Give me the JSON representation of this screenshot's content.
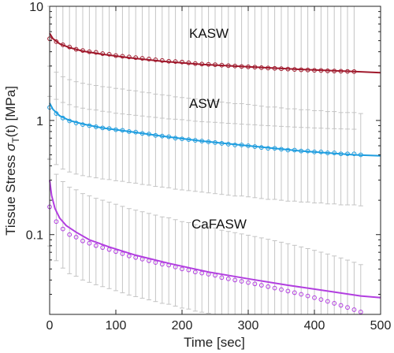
{
  "chart_data": {
    "type": "scatter",
    "xlabel": "Time [sec]",
    "ylabel_prefix": "Tissue Stress ",
    "ylabel_sigma": "σ",
    "ylabel_sub": "T",
    "ylabel_suffix": "(t) [MPa]",
    "xlim": [
      0,
      500
    ],
    "ylim": [
      0.02,
      10
    ],
    "yscale": "log",
    "grid": false,
    "x_ticks": [
      "0",
      "100",
      "200",
      "300",
      "400",
      "500"
    ],
    "y_ticks": [
      "0.1",
      "1",
      "10"
    ],
    "series": [
      {
        "name": "KASW",
        "color": "#a0192c",
        "fit": [
          [
            0,
            5.8
          ],
          [
            5,
            5.2
          ],
          [
            15,
            4.7
          ],
          [
            30,
            4.35
          ],
          [
            50,
            4.05
          ],
          [
            80,
            3.8
          ],
          [
            120,
            3.55
          ],
          [
            170,
            3.3
          ],
          [
            230,
            3.1
          ],
          [
            300,
            2.95
          ],
          [
            380,
            2.8
          ],
          [
            460,
            2.68
          ],
          [
            500,
            2.62
          ]
        ],
        "points": [
          [
            0,
            5.2
          ],
          [
            10,
            4.9
          ],
          [
            20,
            4.6
          ],
          [
            30,
            4.4
          ],
          [
            40,
            4.2
          ],
          [
            50,
            4.1
          ],
          [
            60,
            4.0
          ],
          [
            70,
            3.95
          ],
          [
            80,
            3.85
          ],
          [
            90,
            3.8
          ],
          [
            100,
            3.7
          ],
          [
            110,
            3.65
          ],
          [
            120,
            3.6
          ],
          [
            130,
            3.55
          ],
          [
            140,
            3.5
          ],
          [
            150,
            3.45
          ],
          [
            160,
            3.4
          ],
          [
            170,
            3.35
          ],
          [
            180,
            3.3
          ],
          [
            190,
            3.28
          ],
          [
            200,
            3.25
          ],
          [
            210,
            3.2
          ],
          [
            220,
            3.15
          ],
          [
            230,
            3.12
          ],
          [
            240,
            3.1
          ],
          [
            250,
            3.08
          ],
          [
            260,
            3.05
          ],
          [
            270,
            3.02
          ],
          [
            280,
            3.0
          ],
          [
            290,
            2.97
          ],
          [
            300,
            2.95
          ],
          [
            310,
            2.93
          ],
          [
            320,
            2.9
          ],
          [
            330,
            2.88
          ],
          [
            340,
            2.86
          ],
          [
            350,
            2.84
          ],
          [
            360,
            2.82
          ],
          [
            370,
            2.8
          ],
          [
            380,
            2.78
          ],
          [
            390,
            2.77
          ],
          [
            400,
            2.75
          ],
          [
            410,
            2.74
          ],
          [
            420,
            2.72
          ],
          [
            430,
            2.71
          ],
          [
            440,
            2.7
          ],
          [
            450,
            2.69
          ],
          [
            460,
            2.68
          ]
        ],
        "error_low": 3.2,
        "error_high": 6.6
      },
      {
        "name": "ASW",
        "color": "#1f9ee0",
        "fit": [
          [
            0,
            1.42
          ],
          [
            5,
            1.25
          ],
          [
            15,
            1.1
          ],
          [
            30,
            1.0
          ],
          [
            50,
            0.93
          ],
          [
            80,
            0.86
          ],
          [
            120,
            0.8
          ],
          [
            170,
            0.73
          ],
          [
            230,
            0.66
          ],
          [
            300,
            0.6
          ],
          [
            380,
            0.54
          ],
          [
            460,
            0.5
          ],
          [
            500,
            0.49
          ]
        ],
        "points": [
          [
            0,
            1.3
          ],
          [
            10,
            1.15
          ],
          [
            20,
            1.05
          ],
          [
            30,
            0.99
          ],
          [
            40,
            0.95
          ],
          [
            50,
            0.92
          ],
          [
            60,
            0.9
          ],
          [
            70,
            0.88
          ],
          [
            80,
            0.86
          ],
          [
            90,
            0.85
          ],
          [
            100,
            0.83
          ],
          [
            110,
            0.82
          ],
          [
            120,
            0.8
          ],
          [
            130,
            0.79
          ],
          [
            140,
            0.77
          ],
          [
            150,
            0.76
          ],
          [
            160,
            0.74
          ],
          [
            170,
            0.73
          ],
          [
            180,
            0.72
          ],
          [
            190,
            0.7
          ],
          [
            200,
            0.69
          ],
          [
            210,
            0.68
          ],
          [
            220,
            0.67
          ],
          [
            230,
            0.66
          ],
          [
            240,
            0.65
          ],
          [
            250,
            0.64
          ],
          [
            260,
            0.63
          ],
          [
            270,
            0.62
          ],
          [
            280,
            0.61
          ],
          [
            290,
            0.61
          ],
          [
            300,
            0.6
          ],
          [
            310,
            0.59
          ],
          [
            320,
            0.58
          ],
          [
            330,
            0.57
          ],
          [
            340,
            0.57
          ],
          [
            350,
            0.56
          ],
          [
            360,
            0.55
          ],
          [
            370,
            0.55
          ],
          [
            380,
            0.54
          ],
          [
            390,
            0.54
          ],
          [
            400,
            0.53
          ],
          [
            410,
            0.53
          ],
          [
            420,
            0.52
          ],
          [
            430,
            0.52
          ],
          [
            440,
            0.51
          ],
          [
            450,
            0.51
          ],
          [
            460,
            0.51
          ],
          [
            470,
            0.5
          ]
        ],
        "error_low": 2.8,
        "error_high": 2.3
      },
      {
        "name": "CaFASW",
        "color": "#b23ee0",
        "fit": [
          [
            0,
            0.3
          ],
          [
            3,
            0.22
          ],
          [
            8,
            0.17
          ],
          [
            15,
            0.14
          ],
          [
            25,
            0.12
          ],
          [
            40,
            0.105
          ],
          [
            60,
            0.09
          ],
          [
            90,
            0.078
          ],
          [
            130,
            0.066
          ],
          [
            180,
            0.056
          ],
          [
            240,
            0.047
          ],
          [
            300,
            0.041
          ],
          [
            360,
            0.036
          ],
          [
            420,
            0.032
          ],
          [
            470,
            0.029
          ],
          [
            500,
            0.028
          ]
        ],
        "points": [
          [
            0,
            0.175
          ],
          [
            10,
            0.13
          ],
          [
            20,
            0.112
          ],
          [
            30,
            0.1
          ],
          [
            40,
            0.095
          ],
          [
            50,
            0.088
          ],
          [
            60,
            0.084
          ],
          [
            70,
            0.08
          ],
          [
            80,
            0.077
          ],
          [
            90,
            0.074
          ],
          [
            100,
            0.071
          ],
          [
            110,
            0.068
          ],
          [
            120,
            0.065
          ],
          [
            130,
            0.063
          ],
          [
            140,
            0.061
          ],
          [
            150,
            0.059
          ],
          [
            160,
            0.057
          ],
          [
            170,
            0.055
          ],
          [
            180,
            0.054
          ],
          [
            190,
            0.052
          ],
          [
            200,
            0.05
          ],
          [
            210,
            0.049
          ],
          [
            220,
            0.047
          ],
          [
            230,
            0.046
          ],
          [
            240,
            0.045
          ],
          [
            250,
            0.044
          ],
          [
            260,
            0.042
          ],
          [
            270,
            0.041
          ],
          [
            280,
            0.04
          ],
          [
            290,
            0.039
          ],
          [
            300,
            0.038
          ],
          [
            310,
            0.037
          ],
          [
            320,
            0.036
          ],
          [
            330,
            0.035
          ],
          [
            340,
            0.034
          ],
          [
            350,
            0.033
          ],
          [
            360,
            0.032
          ],
          [
            370,
            0.031
          ],
          [
            380,
            0.03
          ],
          [
            390,
            0.029
          ],
          [
            400,
            0.028
          ],
          [
            410,
            0.027
          ],
          [
            420,
            0.026
          ],
          [
            430,
            0.025
          ],
          [
            440,
            0.024
          ],
          [
            450,
            0.023
          ],
          [
            460,
            0.022
          ],
          [
            470,
            0.021
          ]
        ],
        "error_low": 2.2,
        "error_high": 2.6
      }
    ],
    "error_bar_color": "#c4c4c4"
  }
}
